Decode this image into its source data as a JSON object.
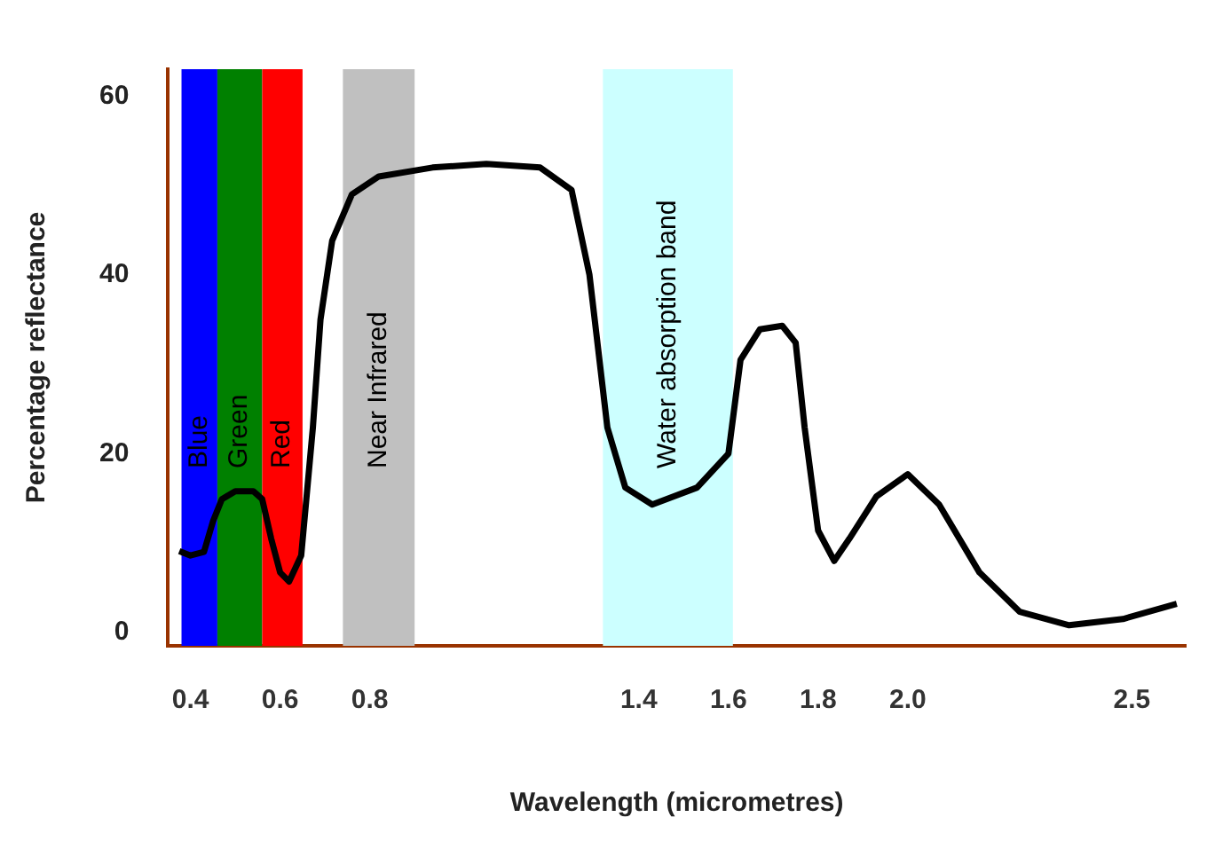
{
  "chart_data": {
    "type": "line",
    "xlabel": "Wavelength (micrometres)",
    "ylabel": "Percentage reflectance",
    "xlim": [
      0.35,
      2.62
    ],
    "ylim": [
      -1.5,
      63
    ],
    "xticks": [
      0.4,
      0.6,
      0.8,
      1.4,
      1.6,
      1.8,
      {
        "value": 2,
        "label": "2.0"
      },
      2.5
    ],
    "yticks": [
      0,
      20,
      40,
      60
    ],
    "grid": false,
    "legend": false,
    "marker": "none",
    "line_style": "solid",
    "series": [
      {
        "color": "#000000",
        "x": [
          0.375,
          0.4,
          0.43,
          0.45,
          0.47,
          0.5,
          0.54,
          0.56,
          0.58,
          0.6,
          0.62,
          0.647,
          0.673,
          0.69,
          0.716,
          0.76,
          0.82,
          0.94,
          1.06,
          1.18,
          1.25,
          1.29,
          1.33,
          1.37,
          1.43,
          1.53,
          1.6,
          1.627,
          1.67,
          1.72,
          1.75,
          1.77,
          1.8,
          1.836,
          1.87,
          1.93,
          2.0,
          2.07,
          2.16,
          2.25,
          2.36,
          2.48,
          2.6
        ],
        "values": [
          9.1,
          8.6,
          9.0,
          12.4,
          14.9,
          15.8,
          15.8,
          14.9,
          10.5,
          6.7,
          5.7,
          8.6,
          22.9,
          35,
          43.8,
          49,
          51,
          52,
          52.4,
          52,
          49.5,
          40,
          22.9,
          16.2,
          14.3,
          16.2,
          20,
          30.5,
          33.9,
          34.3,
          32.4,
          22.9,
          11.4,
          8,
          10.5,
          15.2,
          17.7,
          14.3,
          6.7,
          2.3,
          0.8,
          1.5,
          3.2
        ]
      }
    ],
    "bands": [
      {
        "axis": "x",
        "from": 0.38,
        "to": 0.46,
        "label": "Blue",
        "color": "#0000ff"
      },
      {
        "axis": "x",
        "from": 0.46,
        "to": 0.56,
        "label": "Green",
        "color": "#008000"
      },
      {
        "axis": "x",
        "from": 0.56,
        "to": 0.65,
        "label": "Red",
        "color": "#ff0000"
      },
      {
        "axis": "x",
        "from": 0.74,
        "to": 0.9,
        "label": "Near Infrared",
        "color": "#c0c0c0"
      },
      {
        "axis": "x",
        "from": 1.32,
        "to": 1.61,
        "label": "Water absorption band",
        "color": "#ccffff"
      }
    ]
  }
}
